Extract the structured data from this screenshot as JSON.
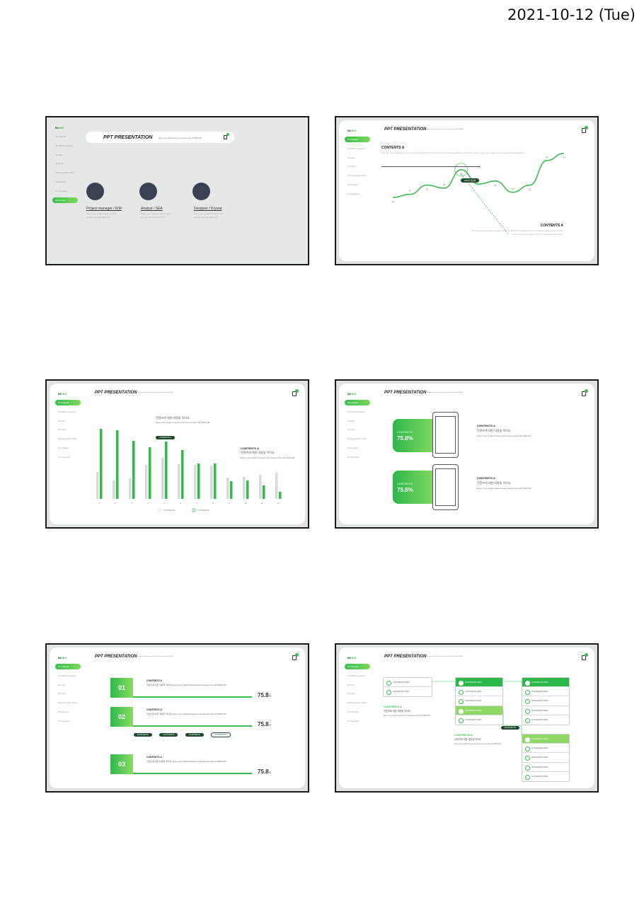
{
  "date": "2021-10-12 (Tue)",
  "common": {
    "index_a": "IN",
    "index_b": "DEX",
    "menu": [
      "01 Analysis",
      "02 SWOT Analysis",
      "03 Idea",
      "04 Goal",
      "05 Expectation Plan",
      "06 Strategy",
      "07 Schedule",
      "08 Growth"
    ],
    "header_title": "PPT PRESENTATION",
    "header_sub": "Enjoy your stylish business and campus life with BIZCAM"
  },
  "slide1": {
    "team": [
      {
        "role": "Project manager / KIM",
        "desc": "Enjoy your stylish business and campus life with BIZCAM"
      },
      {
        "role": "Analyst / SEA",
        "desc": "Enjoy your stylish business and campus life with BIZCAM"
      },
      {
        "role": "Designer / Krystal",
        "desc": "Enjoy your stylish business and campus life with BIZCAM"
      }
    ]
  },
  "slide2": {
    "heading": "CONTENTS A",
    "text": "You can use a software program such as Microsoft PowerPoint to provide the audience with slides that contain your major points or essential information.",
    "badge": "2020년 성장률",
    "bottom_heading": "CONTENTS A",
    "bottom_text": "You can use a software program such as Microsoft PowerPoint to provide the audience with slides that contain your major points or essential information.",
    "chart_data": {
      "type": "line",
      "x": [
        1,
        2,
        3,
        4,
        5,
        6,
        7,
        8,
        9,
        10,
        11
      ],
      "values": [
        20,
        23,
        32,
        29,
        47,
        33,
        36,
        25,
        32,
        56,
        63
      ]
    }
  },
  "slide3": {
    "note1_title": "컨텐츠에 대한 내용을 적어요",
    "note1_text": "Enjoy your stylish business and campus life with BIZCAM",
    "badge": "CONTENTS A",
    "note2_heading": "CONTENTS A",
    "note2_title": "컨텐츠에 대한 내용을 적어요",
    "note2_text": "Enjoy your stylish business and campus life with BIZCAM",
    "chart_data": {
      "type": "bar",
      "categories": [
        "1",
        "2",
        "3",
        "4",
        "5",
        "6",
        "7",
        "8",
        "9",
        "10",
        "11",
        "12"
      ],
      "series": [
        {
          "name": "CONTENTS",
          "color": "#d9d9d9",
          "values": [
            38,
            26,
            29,
            48,
            58,
            49,
            48,
            47,
            30,
            31,
            34,
            37
          ]
        },
        {
          "name": "CONTENTS",
          "color": "#2ebd48",
          "values": [
            99,
            97,
            82,
            73,
            81,
            69,
            50,
            50,
            25,
            26,
            19,
            10
          ]
        }
      ],
      "ylim": [
        0,
        100
      ]
    }
  },
  "slide4": {
    "items": [
      {
        "label": "CONTENTS",
        "value": "75.8%",
        "heading": "CONTENTS A",
        "title": "컨텐츠에 대한 내용을 적어요",
        "text": "Enjoy your stylish business and campus life with BIZCAM"
      },
      {
        "label": "CONTENTS",
        "value": "75.8%",
        "heading": "CONTENTS A",
        "title": "컨텐츠에 대한 내용을 적어요",
        "text": "Enjoy your stylish business and campus life with BIZCAM"
      }
    ]
  },
  "slide5": {
    "rows": [
      {
        "num": "01",
        "heading": "CONTENTS A",
        "text": "컨텐츠에 대한 내용을 적어요 Enjoy your stylish business and campus life with BIZCAM",
        "pct": "75.8",
        "unit": "%",
        "progress": 0.758
      },
      {
        "num": "02",
        "heading": "CONTENTS A",
        "text": "컨텐츠에 대한 내용을 적어요 Enjoy your stylish business and campus life with BIZCAM",
        "pct": "75.8",
        "unit": "%",
        "progress": 0.758
      },
      {
        "num": "03",
        "heading": "CONTENTS A",
        "text": "컨텐츠에 대한 내용을 적어요 Enjoy your stylish business and campus life with BIZCAM",
        "pct": "75.8",
        "unit": "%",
        "progress": 0.758
      }
    ],
    "pills": [
      "#CONTENTS",
      "# CONTENTS",
      "#CONTENTS",
      "# CONTENTS"
    ]
  },
  "slide6": {
    "left_rows": [
      "CONTENTS 50%",
      "CONTENTS 50%"
    ],
    "left_heading": "CONTENTS A",
    "left_title": "컨텐츠에 대한 내용을 적어요",
    "left_text": "Enjoy your stylish business and campus life with BIZCAM",
    "mid_rows": [
      "CONTENTS 50%",
      "CONTENTS 50%",
      "CONTENTS 50%",
      "CONTENTS 50%",
      "CONTENTS 50%"
    ],
    "mid_heading": "CONTENTS A",
    "mid_title": "컨텐츠에 대한 내용을 적어요",
    "mid_text": "Enjoy your stylish business and campus life with BIZCAM",
    "badge": "#CONTENTS",
    "right_top_rows": [
      "CONTENTS 50%",
      "CONTENTS 50%",
      "CONTENTS 50%",
      "CONTENTS 50%",
      "CONTENTS 50%"
    ],
    "right_bottom_rows": [
      "CONTENTS 50%",
      "CONTENTS 50%",
      "CONTENTS 50%",
      "CONTENTS 50%",
      "CONTENTS 50%"
    ]
  }
}
